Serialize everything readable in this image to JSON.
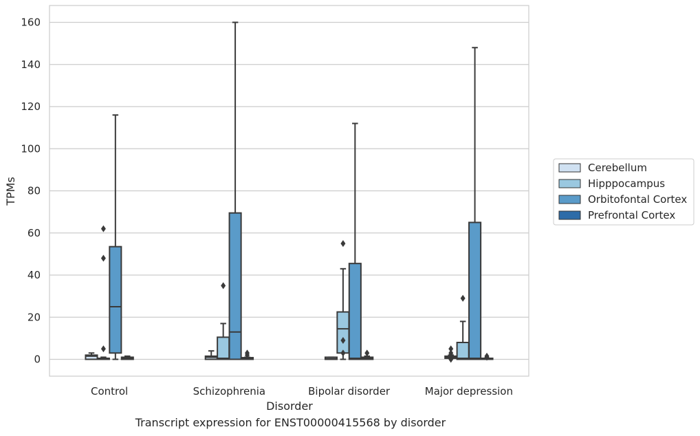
{
  "caption": "Transcript expression for ENST00000415568 by disorder",
  "chart_data": {
    "type": "box",
    "title": "",
    "xlabel": "Disorder",
    "ylabel": "TPMs",
    "ylim": [
      -8,
      168
    ],
    "yticks": [
      0,
      20,
      40,
      60,
      80,
      100,
      120,
      140,
      160
    ],
    "grid": true,
    "legend_position": "right",
    "categories": [
      "Control",
      "Schizophrenia",
      "Bipolar disorder",
      "Major depression"
    ],
    "series": [
      {
        "name": "Cerebellum",
        "color": "#d0e1f2",
        "boxes": [
          {
            "q1": 0,
            "median": 1.5,
            "q3": 2,
            "whisker_low": 0,
            "whisker_high": 3,
            "outliers": []
          },
          {
            "q1": 0,
            "median": 1,
            "q3": 1.5,
            "whisker_low": 0,
            "whisker_high": 4,
            "outliers": []
          },
          {
            "q1": 0,
            "median": 0.3,
            "q3": 1,
            "whisker_low": 0,
            "whisker_high": 1,
            "outliers": []
          },
          {
            "q1": 0.5,
            "median": 1,
            "q3": 1.5,
            "whisker_low": 0.5,
            "whisker_high": 2,
            "outliers": [
              0,
              2,
              3,
              5
            ]
          }
        ]
      },
      {
        "name": "Hipppocampus",
        "color": "#9ac8e0",
        "boxes": [
          {
            "q1": 0,
            "median": 0.2,
            "q3": 0.5,
            "whisker_low": 0,
            "whisker_high": 1,
            "outliers": [
              62,
              48,
              5
            ]
          },
          {
            "q1": 0,
            "median": 0.5,
            "q3": 10.5,
            "whisker_low": 0,
            "whisker_high": 17,
            "outliers": [
              35
            ]
          },
          {
            "q1": 3,
            "median": 14.5,
            "q3": 22.5,
            "whisker_low": 0,
            "whisker_high": 43,
            "outliers": [
              55,
              9,
              3
            ]
          },
          {
            "q1": 0,
            "median": 0.5,
            "q3": 8,
            "whisker_low": 0,
            "whisker_high": 18,
            "outliers": [
              29
            ]
          }
        ]
      },
      {
        "name": "Orbitofontal Cortex",
        "color": "#5a9bc9",
        "boxes": [
          {
            "q1": 3,
            "median": 25,
            "q3": 53.5,
            "whisker_low": 0,
            "whisker_high": 116,
            "outliers": []
          },
          {
            "q1": 0,
            "median": 13,
            "q3": 69.5,
            "whisker_low": 0,
            "whisker_high": 160,
            "outliers": []
          },
          {
            "q1": 0,
            "median": 0.5,
            "q3": 45.5,
            "whisker_low": 0,
            "whisker_high": 112,
            "outliers": []
          },
          {
            "q1": 0,
            "median": 0.5,
            "q3": 65,
            "whisker_low": 0,
            "whisker_high": 148,
            "outliers": []
          }
        ]
      },
      {
        "name": "Prefrontal Cortex",
        "color": "#2d6ca8",
        "boxes": [
          {
            "q1": 0,
            "median": 0.5,
            "q3": 1,
            "whisker_low": 0,
            "whisker_high": 1.5,
            "outliers": []
          },
          {
            "q1": 0,
            "median": 0.3,
            "q3": 0.8,
            "whisker_low": 0,
            "whisker_high": 1,
            "outliers": [
              2,
              3
            ]
          },
          {
            "q1": 0,
            "median": 0.5,
            "q3": 1,
            "whisker_low": 0,
            "whisker_high": 1.5,
            "outliers": [
              3
            ]
          },
          {
            "q1": 0,
            "median": 0.2,
            "q3": 0.5,
            "whisker_low": 0,
            "whisker_high": 0.5,
            "outliers": [
              1,
              1.5
            ]
          }
        ]
      }
    ]
  }
}
